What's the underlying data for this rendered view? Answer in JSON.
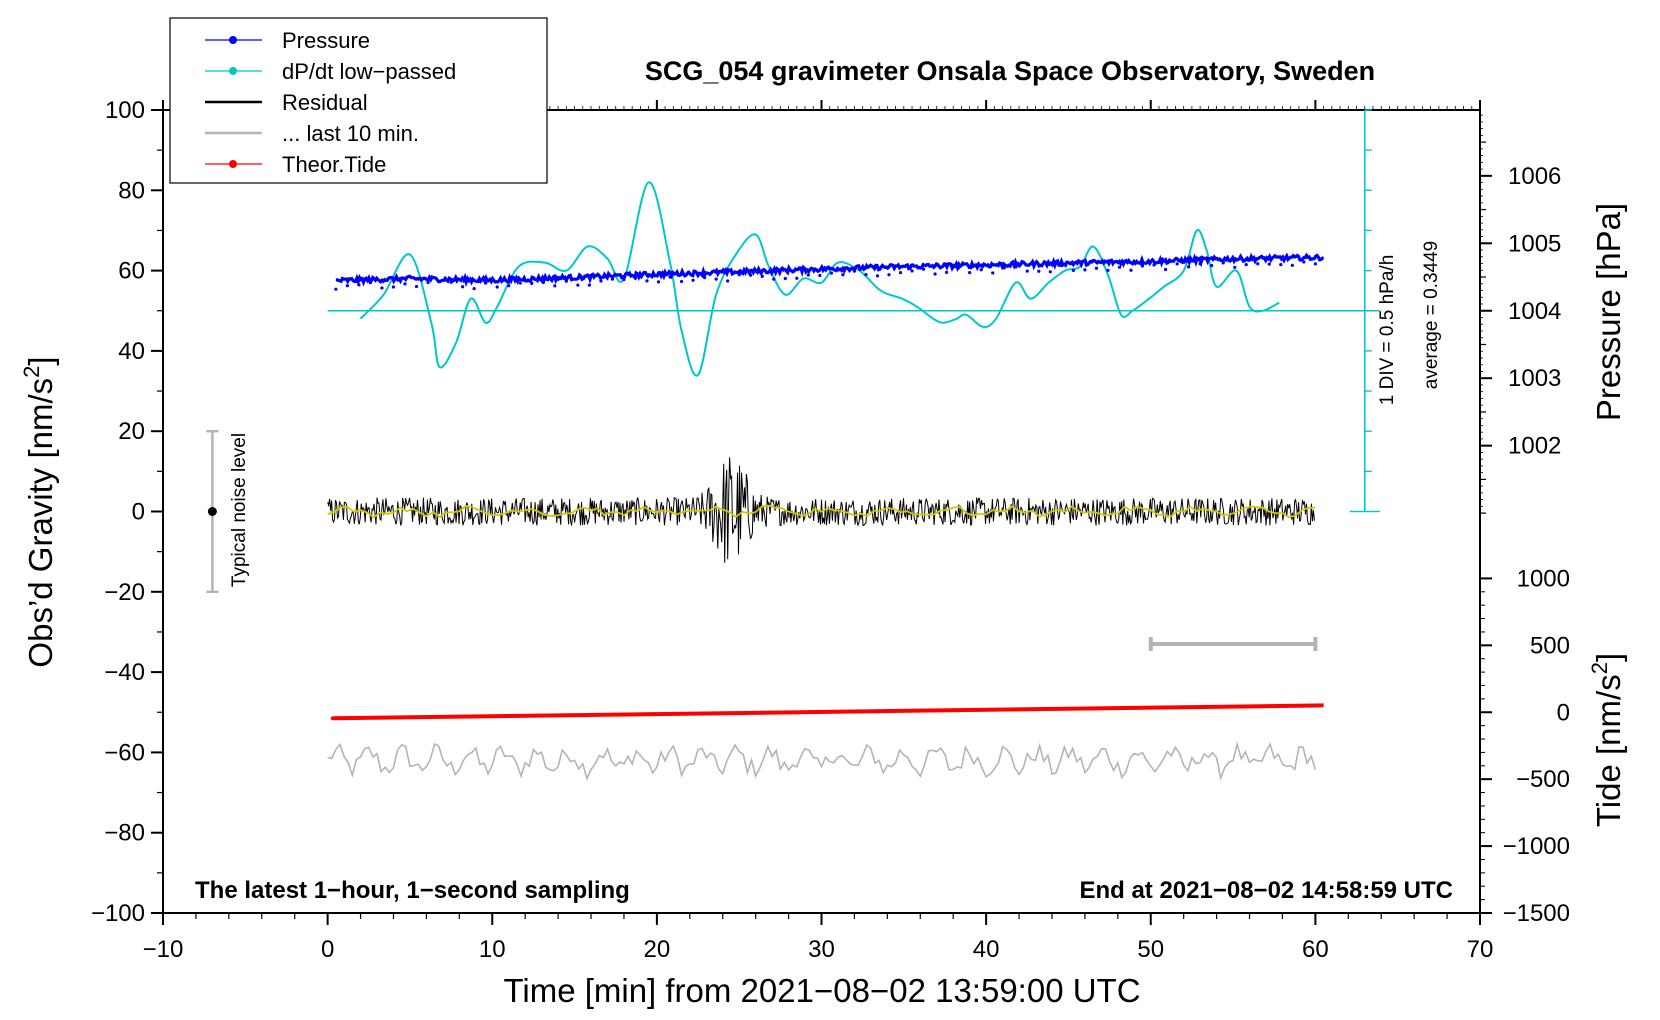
{
  "chart_data": {
    "type": "line",
    "title": "SCG_054 gravimeter Onsala Space Observatory, Sweden",
    "xlabel": "Time [min] from 2021−08−02 13:59:00 UTC",
    "ylabel": "Obs’d Gravity [nm/s²]",
    "ylabel_main": "Obs’d Gravity [nm/s",
    "ylabel_sup": "2",
    "ylabel_tail": "]",
    "xlim": [
      -10,
      70
    ],
    "ylim": [
      -100,
      100
    ],
    "x_ticks": [
      -10,
      0,
      10,
      20,
      30,
      40,
      50,
      60,
      70
    ],
    "x_tick_labels": [
      "−10",
      "0",
      "10",
      "20",
      "30",
      "40",
      "50",
      "60",
      "70"
    ],
    "y_ticks": [
      -100,
      -80,
      -60,
      -40,
      -20,
      0,
      20,
      40,
      60,
      80,
      100
    ],
    "y_tick_labels": [
      "−100",
      "−80",
      "−60",
      "−40",
      "−20",
      "0",
      "20",
      "40",
      "60",
      "80",
      "100"
    ],
    "pressure_axis": {
      "label": "Pressure [hPa]",
      "ticks": [
        1002,
        1003,
        1004,
        1005,
        1006
      ],
      "tick_labels": [
        "1002",
        "1003",
        "1004",
        "1005",
        "1006"
      ],
      "ref_gravity": 50,
      "ref_value": 1004,
      "gravity_per_hPa": 16.8
    },
    "tide_axis": {
      "label_main": "Tide [nm/s",
      "label_sup": "2",
      "label_tail": "]",
      "ticks": [
        -1500,
        -1000,
        -500,
        0,
        500,
        1000
      ],
      "tick_labels": [
        "−1500",
        "−1000",
        "−500",
        "0",
        "500",
        "1000"
      ],
      "ref_gravity": -50,
      "gravity_per_unit": 0.033333
    },
    "dpdt_scale": {
      "x": 63,
      "range": [
        0,
        100
      ],
      "label_div": "1 DIV = 0.5 hPa/h",
      "label_avg": "average = 0.3449",
      "zero_line_y": 50
    },
    "noise_bar": {
      "x": -7,
      "center": 0,
      "half_range": 20,
      "label": "Typical noise level"
    },
    "last10_bar": {
      "x_range": [
        50,
        60
      ],
      "y": -33
    },
    "legend": [
      {
        "label": "Pressure",
        "color": "#0000ff",
        "style": "line-dot"
      },
      {
        "label": "dP/dt low−passed",
        "color": "#00c8c8",
        "style": "line-dot"
      },
      {
        "label": "Residual",
        "color": "#000000",
        "style": "line"
      },
      {
        "label": "... last 10 min.",
        "color": "#b4b4b4",
        "style": "line"
      },
      {
        "label": "Theor.Tide",
        "color": "#ff0000",
        "style": "line-dot"
      }
    ],
    "annotation_left": "The latest 1−hour, 1−second sampling",
    "annotation_right": "End at 2021−08−02 14:58:59 UTC",
    "series": [
      {
        "name": "Pressure",
        "color": "#0000ff",
        "x": [
          0.5,
          5,
          10,
          15,
          20,
          25,
          30,
          35,
          40,
          45,
          50,
          55,
          60.5
        ],
        "values": [
          57.5,
          58.0,
          57.6,
          58.3,
          59.1,
          59.7,
          60.4,
          61.0,
          61.4,
          61.9,
          62.3,
          62.9,
          63.3
        ]
      },
      {
        "name": "dP/dt low-passed",
        "color": "#00c8c8",
        "x": [
          2.0,
          3.4,
          5.0,
          6.3,
          6.8,
          7.8,
          8.7,
          9.6,
          10.3,
          11.6,
          13.2,
          14.5,
          15.8,
          17.0,
          18.0,
          19.5,
          20.8,
          21.5,
          22.5,
          23.6,
          24.8,
          26.0,
          26.8,
          27.8,
          28.9,
          30.0,
          31.0,
          32.3,
          33.6,
          34.9,
          35.8,
          36.8,
          37.4,
          38.2,
          38.8,
          39.8,
          40.6,
          41.8,
          42.7,
          43.8,
          44.8,
          45.7,
          46.5,
          47.4,
          48.2,
          48.9,
          49.9,
          50.8,
          52.0,
          52.8,
          53.4,
          54.0,
          55.2,
          56.0,
          56.8,
          57.8
        ],
        "values": [
          48,
          54,
          64,
          47,
          36,
          42,
          53,
          47,
          51,
          61,
          62,
          60,
          66,
          63,
          58,
          82,
          62,
          45,
          34,
          54,
          64,
          69,
          61,
          54,
          58,
          57,
          62,
          60,
          55,
          53,
          51,
          48,
          47,
          48,
          49,
          46,
          48,
          57,
          53,
          57,
          60,
          61,
          66,
          59,
          49,
          50,
          53,
          56,
          60,
          70,
          65,
          56,
          60,
          51,
          50,
          52
        ]
      },
      {
        "name": "Residual",
        "color": "#000000",
        "x_range": [
          0,
          60
        ],
        "baseline": 0,
        "noise_amplitude": 3.5,
        "burst": {
          "center_min": 24.5,
          "amplitude": 12
        }
      },
      {
        "name": "... last 10 min.",
        "color": "#b4b4b4",
        "x_range": [
          0,
          60
        ],
        "baseline": -62,
        "amplitude": 3.5
      },
      {
        "name": "Theor.Tide",
        "color": "#ff0000",
        "x": [
          0.3,
          60.5
        ],
        "values": [
          -51.5,
          -48.3
        ]
      }
    ]
  }
}
